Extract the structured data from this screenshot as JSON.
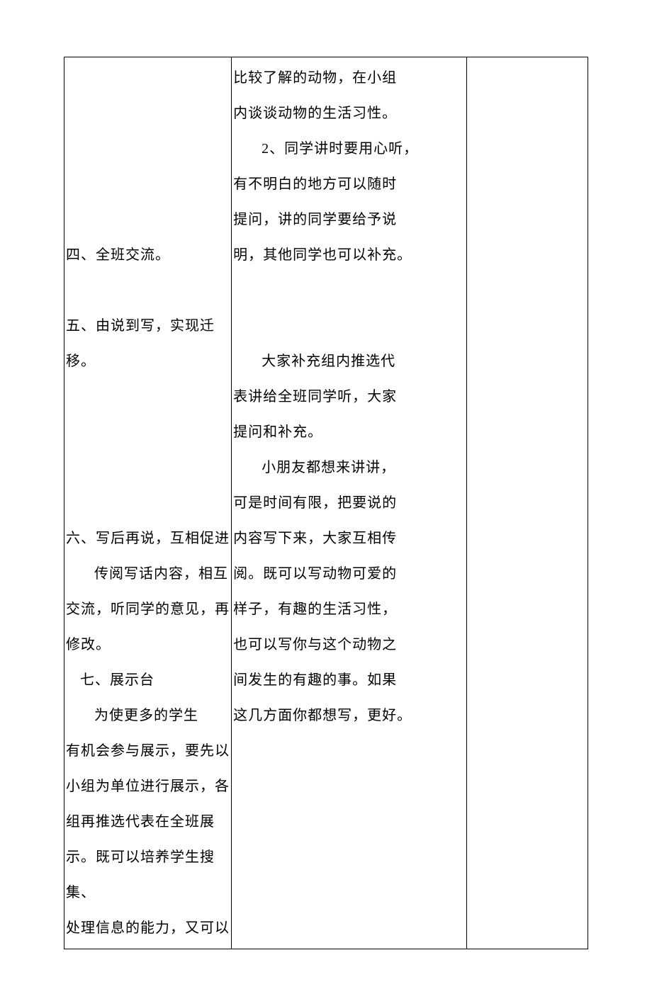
{
  "document": {
    "font_family": "SimSun",
    "font_size": 20,
    "line_height": 2.5,
    "text_color": "#000000",
    "border_color": "#000000",
    "background_color": "#ffffff"
  },
  "table": {
    "columns": [
      {
        "width_percent": 32
      },
      {
        "width_percent": 45
      },
      {
        "width_percent": 23
      }
    ],
    "left_column": {
      "section4": "四、全班交流。",
      "section5": "五、由说到写，实现迁移。",
      "section6_title": "六、写后再说，互相促进",
      "section6_line1": "传阅写话内容，相互",
      "section6_line2": "交流，听同学的意见，再",
      "section6_line3": "修改。",
      "section7_title": "七、展示台",
      "section7_line1": "为使更多的学生",
      "section7_line2": "有机会参与展示，要先以",
      "section7_line3": "小组为单位进行展示，各",
      "section7_line4": "组再推选代表在全班展",
      "section7_line5": "示。既可以培养学生搜集、",
      "section7_line6": "处理信息的能力，又可以"
    },
    "middle_column": {
      "para1_line1": "比较了解的动物，在小组",
      "para1_line2": "内谈谈动物的生活习性。",
      "para2_line1": "2、同学讲时要用心听，",
      "para2_line2": "有不明白的地方可以随时",
      "para2_line3": "提问，讲的同学要给予说",
      "para2_line4": "明，其他同学也可以补充。",
      "para3_line1": "大家补充组内推选代",
      "para3_line2": "表讲给全班同学听，大家",
      "para3_line3": "提问和补充。",
      "para4_line1": "小朋友都想来讲讲，",
      "para4_line2": "可是时间有限，把要说的",
      "para4_line3": "内容写下来，大家互相传",
      "para4_line4": "阅。既可以写动物可爱的",
      "para4_line5": "样子，有趣的生活习性，",
      "para4_line6": "也可以写你与这个动物之",
      "para4_line7": "间发生的有趣的事。如果",
      "para4_line8": "这几方面你都想写，更好。"
    }
  }
}
